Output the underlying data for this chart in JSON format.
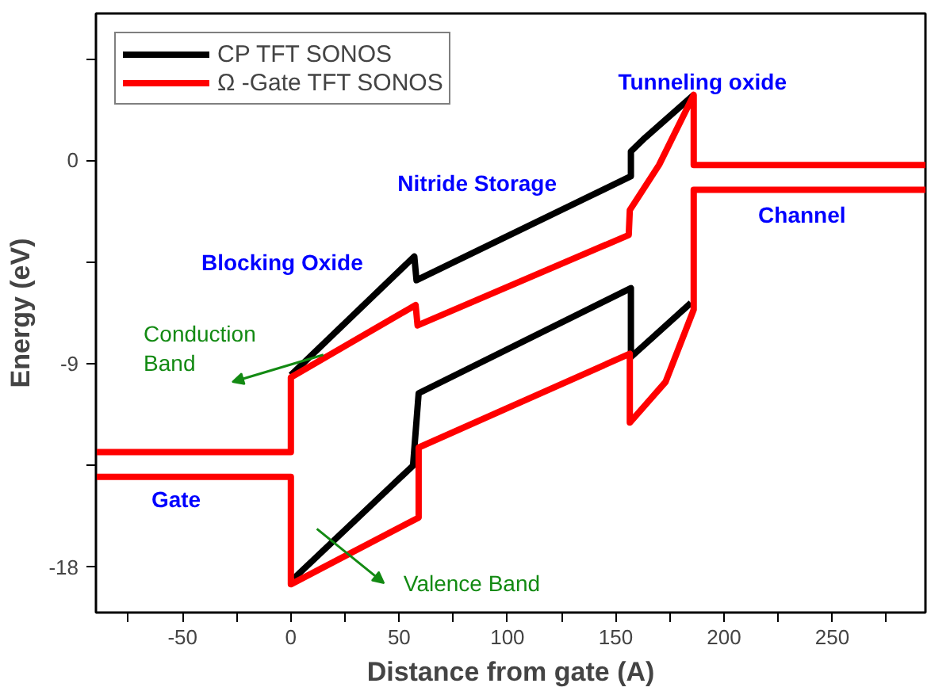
{
  "chart_data": {
    "type": "line",
    "xlabel": "Distance from gate (A)",
    "ylabel": "Energy (eV)",
    "xlim": [
      -90,
      293
    ],
    "ylim": [
      -20,
      6.5
    ],
    "xticks": [
      {
        "value": -75,
        "label": null
      },
      -50,
      {
        "value": -25,
        "label": null
      },
      0,
      {
        "value": 25,
        "label": null
      },
      50,
      {
        "value": 75,
        "label": null
      },
      100,
      {
        "value": 125,
        "label": null
      },
      150,
      {
        "value": 175,
        "label": null
      },
      200,
      {
        "value": 225,
        "label": null
      },
      250,
      {
        "value": 275,
        "label": null
      }
    ],
    "yticks": [
      {
        "value": 4.5,
        "label": null
      },
      0,
      {
        "value": -4.5,
        "label": null
      },
      -9,
      {
        "value": -13.5,
        "label": null
      },
      -18
    ],
    "grid": false,
    "legend": "top left",
    "line_style": "solid",
    "marker": "none",
    "series": [
      {
        "name": "CP TFT SONOS",
        "color": "#000000",
        "x": [
          0,
          57,
          58,
          157,
          157,
          163.5,
          186
        ],
        "values": [
          -9.5,
          -4.25,
          -5.3,
          -0.7,
          0.4,
          1.0,
          2.9
        ]
      },
      {
        "color": "#000000",
        "x": [
          1.3,
          56.4,
          59,
          157,
          157,
          184.7
        ],
        "values": [
          -18.5,
          -13.5,
          -10.3,
          -5.65,
          -8.7,
          -6.3
        ]
      },
      {
        "name": "Ω -Gate TFT SONOS",
        "color": "#ff0000",
        "x": [
          -90,
          0,
          0,
          57.6,
          58.5,
          156,
          156.5,
          170,
          186,
          186,
          293
        ],
        "values": [
          -12.9,
          -12.9,
          -9.6,
          -6.4,
          -7.3,
          -3.3,
          -2.2,
          -0.2,
          2.9,
          -0.2,
          -0.2
        ]
      },
      {
        "color": "#ff0000",
        "x": [
          -90,
          0,
          0,
          59,
          59,
          156.5,
          156.5,
          173,
          186,
          186,
          293
        ],
        "values": [
          -14.0,
          -14.0,
          -18.75,
          -15.8,
          -12.7,
          -8.55,
          -11.6,
          -9.8,
          -6.6,
          -1.3,
          -1.3
        ]
      }
    ],
    "annotations": [
      "Tunneling oxide",
      "Nitride Storage",
      "Channel",
      "Blocking Oxide",
      "Gate",
      "Conduction\nBand",
      "Valence Band"
    ]
  }
}
